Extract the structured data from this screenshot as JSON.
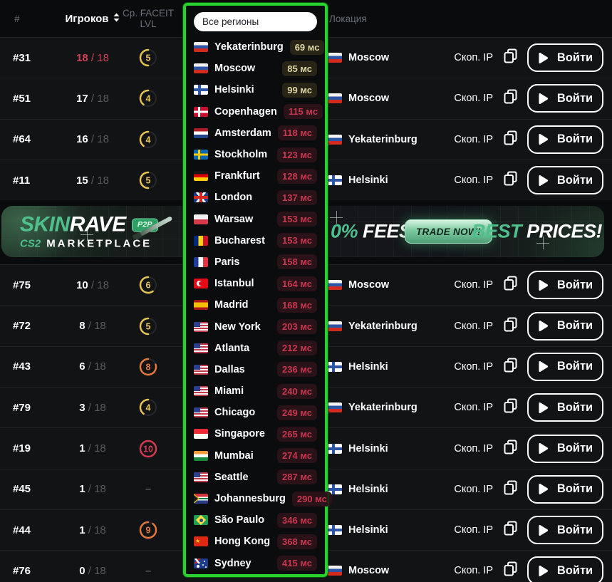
{
  "header": {
    "rank": "#",
    "players": "Игроков",
    "faceit": "Ср. FACEIT LVL",
    "location": "Локация"
  },
  "labels": {
    "copy_ip": "Скоп. IP",
    "join": "Войти",
    "empty_level": "–",
    "max_divider": "/"
  },
  "servers": [
    {
      "rank": "#31",
      "players": "18",
      "max": "18",
      "full": true,
      "level": 5,
      "tone": "yellow",
      "city": "Moscow",
      "flag": "ru"
    },
    {
      "rank": "#51",
      "players": "17",
      "max": "18",
      "full": false,
      "level": 4,
      "tone": "yellow",
      "city": "Moscow",
      "flag": "ru"
    },
    {
      "rank": "#64",
      "players": "16",
      "max": "18",
      "full": false,
      "level": 4,
      "tone": "yellow",
      "city": "Yekaterinburg",
      "flag": "ru"
    },
    {
      "rank": "#11",
      "players": "15",
      "max": "18",
      "full": false,
      "level": 5,
      "tone": "yellow",
      "city": "Helsinki",
      "flag": "fi"
    },
    {
      "rank": "#75",
      "players": "10",
      "max": "18",
      "full": false,
      "level": 6,
      "tone": "yellow",
      "city": "Moscow",
      "flag": "ru"
    },
    {
      "rank": "#72",
      "players": "8",
      "max": "18",
      "full": false,
      "level": 5,
      "tone": "yellow",
      "city": "Yekaterinburg",
      "flag": "ru"
    },
    {
      "rank": "#43",
      "players": "6",
      "max": "18",
      "full": false,
      "level": 8,
      "tone": "orange",
      "city": "Helsinki",
      "flag": "fi"
    },
    {
      "rank": "#79",
      "players": "3",
      "max": "18",
      "full": false,
      "level": 4,
      "tone": "yellow",
      "city": "Yekaterinburg",
      "flag": "ru"
    },
    {
      "rank": "#19",
      "players": "1",
      "max": "18",
      "full": false,
      "level": 10,
      "tone": "red",
      "city": "Helsinki",
      "flag": "fi"
    },
    {
      "rank": "#45",
      "players": "1",
      "max": "18",
      "full": false,
      "level": null,
      "city": "Helsinki",
      "flag": "fi"
    },
    {
      "rank": "#44",
      "players": "1",
      "max": "18",
      "full": false,
      "level": 9,
      "tone": "orange",
      "city": "Helsinki",
      "flag": "fi"
    },
    {
      "rank": "#76",
      "players": "0",
      "max": "18",
      "full": false,
      "level": null,
      "city": "Moscow",
      "flag": "ru"
    }
  ],
  "region_dropdown": {
    "search_value": "Все регионы",
    "ping_unit": "мс",
    "regions": [
      {
        "city": "Yekaterinburg",
        "flag": "ru",
        "ping": 69,
        "status": "ok"
      },
      {
        "city": "Moscow",
        "flag": "ru",
        "ping": 85,
        "status": "ok"
      },
      {
        "city": "Helsinki",
        "flag": "fi",
        "ping": 99,
        "status": "ok"
      },
      {
        "city": "Copenhagen",
        "flag": "dk",
        "ping": 115,
        "status": "slow"
      },
      {
        "city": "Amsterdam",
        "flag": "nl",
        "ping": 118,
        "status": "slow"
      },
      {
        "city": "Stockholm",
        "flag": "se",
        "ping": 123,
        "status": "slow"
      },
      {
        "city": "Frankfurt",
        "flag": "de",
        "ping": 128,
        "status": "slow"
      },
      {
        "city": "London",
        "flag": "gb",
        "ping": 137,
        "status": "slow"
      },
      {
        "city": "Warsaw",
        "flag": "pl",
        "ping": 153,
        "status": "slow"
      },
      {
        "city": "Bucharest",
        "flag": "ro",
        "ping": 153,
        "status": "slow"
      },
      {
        "city": "Paris",
        "flag": "fr",
        "ping": 158,
        "status": "slow"
      },
      {
        "city": "Istanbul",
        "flag": "tr",
        "ping": 164,
        "status": "slow"
      },
      {
        "city": "Madrid",
        "flag": "es",
        "ping": 168,
        "status": "slow"
      },
      {
        "city": "New York",
        "flag": "us",
        "ping": 203,
        "status": "slow"
      },
      {
        "city": "Atlanta",
        "flag": "us",
        "ping": 212,
        "status": "slow"
      },
      {
        "city": "Dallas",
        "flag": "us",
        "ping": 236,
        "status": "slow"
      },
      {
        "city": "Miami",
        "flag": "us",
        "ping": 240,
        "status": "slow"
      },
      {
        "city": "Chicago",
        "flag": "us",
        "ping": 249,
        "status": "slow"
      },
      {
        "city": "Singapore",
        "flag": "sg",
        "ping": 265,
        "status": "slow"
      },
      {
        "city": "Mumbai",
        "flag": "in",
        "ping": 274,
        "status": "slow"
      },
      {
        "city": "Seattle",
        "flag": "us",
        "ping": 287,
        "status": "slow"
      },
      {
        "city": "Johannesburg",
        "flag": "za",
        "ping": 290,
        "status": "slow"
      },
      {
        "city": "São Paulo",
        "flag": "br",
        "ping": 346,
        "status": "slow"
      },
      {
        "city": "Hong Kong",
        "flag": "hk",
        "ping": 368,
        "status": "slow"
      },
      {
        "city": "Sydney",
        "flag": "au",
        "ping": 415,
        "status": "slow"
      }
    ]
  },
  "banner": {
    "brand_primary": "SKIN",
    "brand_secondary": "RAVE",
    "badge": "P2P",
    "sub_brand": "CS2",
    "sub_text": "MARKETPLACE",
    "offer_value": "0%",
    "offer_label": "FEES",
    "cta": "TRADE NOW!",
    "tag_accent": "BEST",
    "tag_rest": "PRICES!"
  },
  "colors": {
    "accent_green": "#28d12e",
    "level_yellow": "#e6c44f",
    "level_orange": "#e2793a",
    "level_red": "#d23a52",
    "full_red": "#d04156",
    "ping_ok_text": "#ded8a6",
    "ping_slow_text": "#c93750",
    "brand_green": "#4fc08d"
  }
}
